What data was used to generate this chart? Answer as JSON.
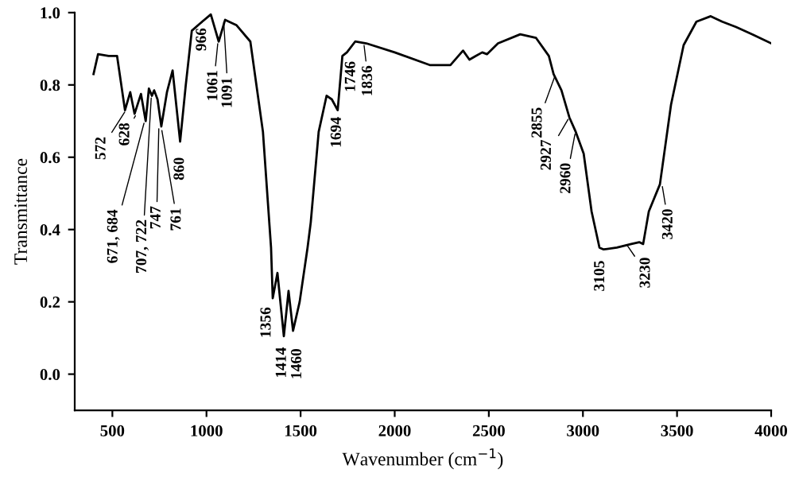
{
  "chart_data": {
    "type": "line",
    "xlabel": "Wavenumber (cm$^{−1}$)",
    "ylabel": "Transmittance",
    "x": [
      400,
      424,
      480,
      525,
      567,
      595,
      618,
      652,
      677,
      694,
      710,
      722,
      740,
      760,
      790,
      820,
      860,
      890,
      922,
      966,
      1023,
      1065,
      1099,
      1160,
      1233,
      1300,
      1343,
      1352,
      1377,
      1411,
      1436,
      1460,
      1495,
      1537,
      1554,
      1596,
      1638,
      1666,
      1697,
      1722,
      1746,
      1790,
      1849,
      2000,
      2186,
      2296,
      2363,
      2397,
      2430,
      2465,
      2490,
      2549,
      2667,
      2751,
      2819,
      2844,
      2886,
      2928,
      2962,
      3004,
      3046,
      3088,
      3110,
      3180,
      3257,
      3299,
      3320,
      3350,
      3409,
      3468,
      3535,
      3603,
      3679,
      3740,
      3814,
      3900,
      4000
    ],
    "series": [
      {
        "color": "#000000",
        "values": [
          0.83,
          0.885,
          0.88,
          0.88,
          0.73,
          0.78,
          0.72,
          0.775,
          0.7,
          0.79,
          0.77,
          0.785,
          0.76,
          0.685,
          0.78,
          0.84,
          0.643,
          0.8,
          0.95,
          0.97,
          0.995,
          0.92,
          0.98,
          0.965,
          0.92,
          0.67,
          0.35,
          0.21,
          0.28,
          0.105,
          0.23,
          0.12,
          0.2,
          0.35,
          0.42,
          0.67,
          0.77,
          0.76,
          0.73,
          0.88,
          0.89,
          0.92,
          0.915,
          0.89,
          0.855,
          0.855,
          0.895,
          0.87,
          0.88,
          0.89,
          0.885,
          0.915,
          0.94,
          0.93,
          0.88,
          0.83,
          0.785,
          0.71,
          0.67,
          0.61,
          0.45,
          0.35,
          0.345,
          0.35,
          0.36,
          0.365,
          0.36,
          0.45,
          0.525,
          0.745,
          0.91,
          0.975,
          0.99,
          0.975,
          0.96,
          0.94,
          0.915
        ]
      }
    ],
    "xlim": [
      300,
      4000
    ],
    "xticks": [
      500,
      1000,
      1500,
      2000,
      2500,
      3000,
      3500,
      4000
    ],
    "ylim": [
      -0.1,
      1.0
    ],
    "yticks": [
      {
        "value": 0,
        "label": "0.0"
      },
      {
        "value": 0.2,
        "label": "0.2"
      },
      {
        "value": 0.4,
        "label": "0.4"
      },
      {
        "value": 0.6,
        "label": "0.6"
      },
      {
        "value": 0.8,
        "label": "0.8"
      },
      {
        "value": 1.0,
        "label": "1.0"
      }
    ],
    "grid": false,
    "legend": false,
    "marker": "none",
    "line_style": "solid",
    "annotations": [
      {
        "text": "572",
        "x": 572,
        "y": 0.73
      },
      {
        "text": "628",
        "x": 628,
        "y": 0.72
      },
      {
        "text": "671, 684",
        "x": 671,
        "y": 0.7
      },
      {
        "text": "707, 722",
        "x": 707,
        "y": 0.77
      },
      {
        "text": "747",
        "x": 747,
        "y": 0.685
      },
      {
        "text": "761",
        "x": 761,
        "y": 0.68
      },
      {
        "text": "860",
        "x": 860,
        "y": 0.643
      },
      {
        "text": "966",
        "x": 966,
        "y": 0.97
      },
      {
        "text": "1061",
        "x": 1061,
        "y": 0.92
      },
      {
        "text": "1091",
        "x": 1091,
        "y": 0.98
      },
      {
        "text": "1356",
        "x": 1356,
        "y": 0.21
      },
      {
        "text": "1414",
        "x": 1414,
        "y": 0.105
      },
      {
        "text": "1460",
        "x": 1460,
        "y": 0.12
      },
      {
        "text": "1694",
        "x": 1694,
        "y": 0.73
      },
      {
        "text": "1746",
        "x": 1746,
        "y": 0.89
      },
      {
        "text": "1836",
        "x": 1836,
        "y": 0.915
      },
      {
        "text": "2855",
        "x": 2855,
        "y": 0.83
      },
      {
        "text": "2927",
        "x": 2927,
        "y": 0.71
      },
      {
        "text": "2960",
        "x": 2960,
        "y": 0.67
      },
      {
        "text": "3105",
        "x": 3105,
        "y": 0.345
      },
      {
        "text": "3230",
        "x": 3230,
        "y": 0.36
      },
      {
        "text": "3420",
        "x": 3420,
        "y": 0.525
      }
    ]
  }
}
